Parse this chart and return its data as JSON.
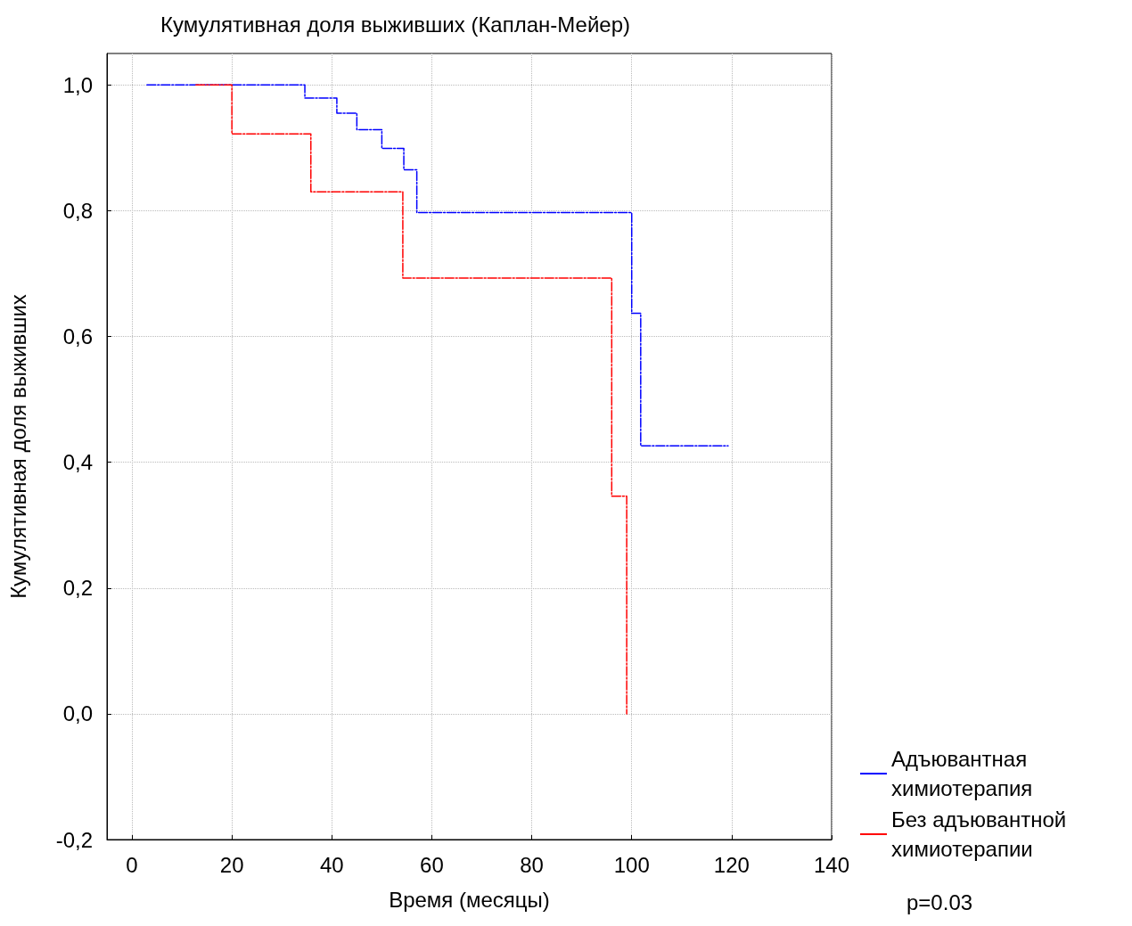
{
  "chart_data": {
    "type": "step",
    "title": "Кумулятивная доля выживших (Каплан-Мейер)",
    "xlabel": "Время (месяцы)",
    "ylabel": "Кумулятивная доля выживших",
    "xlim": [
      -5,
      140
    ],
    "xticks": [
      0,
      20,
      40,
      60,
      80,
      100,
      120,
      140
    ],
    "ylim": [
      -0.2,
      1.05
    ],
    "yticks": [
      {
        "value": -0.2,
        "label": "-0,2"
      },
      {
        "value": 0,
        "label": "0,0"
      },
      {
        "value": 0.2,
        "label": "0,2"
      },
      {
        "value": 0.4,
        "label": "0,4"
      },
      {
        "value": 0.6,
        "label": "0,6"
      },
      {
        "value": 0.8,
        "label": "0,8"
      },
      {
        "value": 1,
        "label": "1,0"
      }
    ],
    "grid": true,
    "legend": "bottom right",
    "line_style": "dashed",
    "marker": "none",
    "annotations": [
      "p=0.03"
    ],
    "series": [
      {
        "name": "Адъювантная химиотерапия",
        "color": "#0000ff",
        "x": [
          3,
          34.6,
          41,
          45,
          50,
          54.4,
          57,
          100,
          101.8,
          119.3
        ],
        "values": [
          1,
          0.979,
          0.955,
          0.929,
          0.899,
          0.865,
          0.797,
          0.637,
          0.426,
          0.426
        ]
      },
      {
        "name": "Без адъювантной химиотерапии",
        "color": "#ff0000",
        "x": [
          12.8,
          20,
          35.8,
          54.2,
          96,
          99
        ],
        "values": [
          1,
          0.922,
          0.83,
          0.693,
          0.346,
          0
        ]
      }
    ]
  }
}
